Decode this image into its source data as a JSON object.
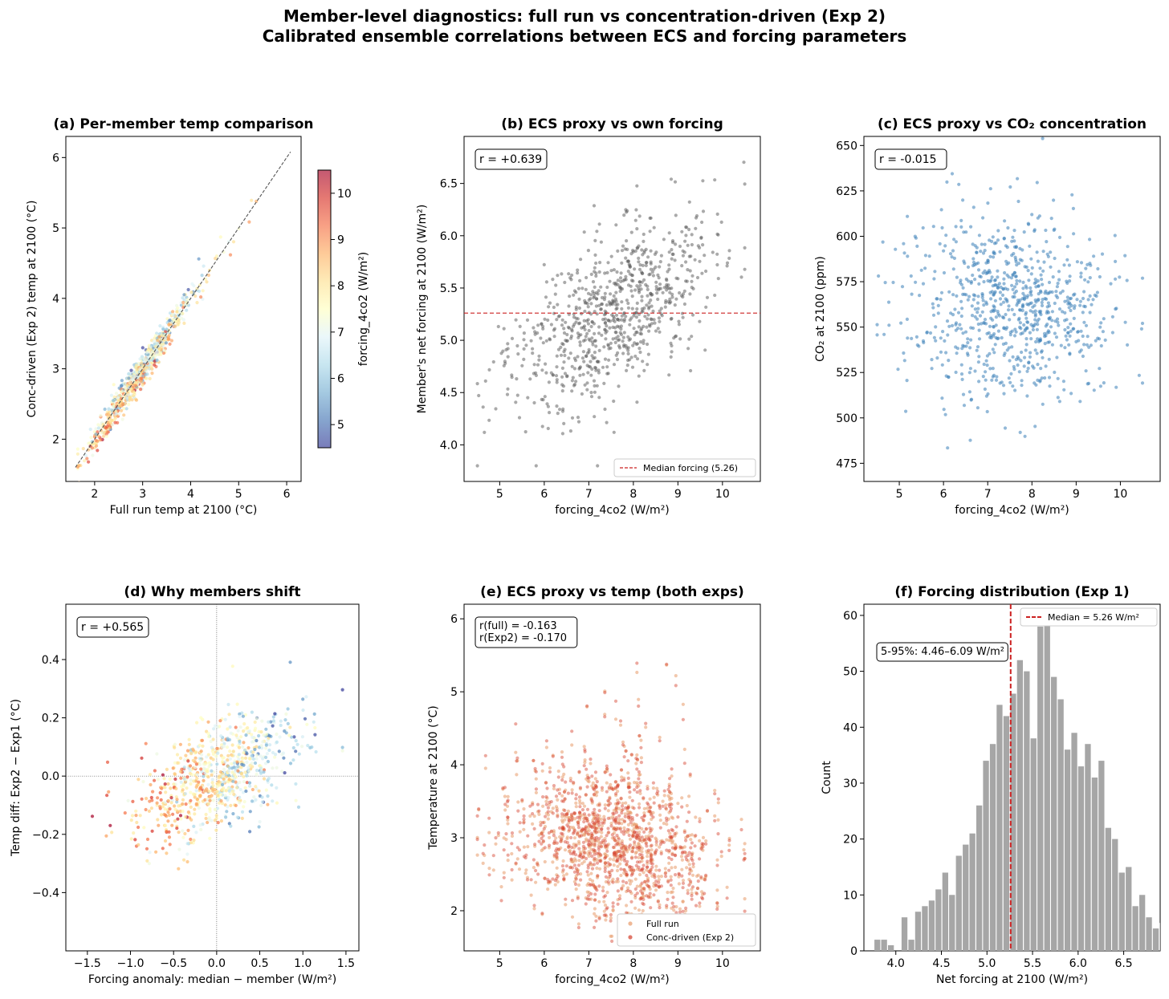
{
  "figure": {
    "title_line1": "Member-level diagnostics: full run vs concentration-driven (Exp 2)",
    "title_line2": "Calibrated ensemble correlations between ECS and forcing parameters"
  },
  "colors": {
    "gray_points": "#555555",
    "blue_points": "#3a7fb8",
    "full_run": "#e89a6a",
    "conc_driven": "#d43d2a",
    "median_line": "#cc2222",
    "hist_bar": "#a6a6a6"
  },
  "chart_data": [
    {
      "id": "a",
      "type": "scatter",
      "title": "(a) Per-member temp comparison",
      "xlabel": "Full run temp at 2100 (°C)",
      "ylabel": "Conc-driven (Exp 2) temp at 2100 (°C)",
      "xlim": [
        1.4,
        6.3
      ],
      "ylim": [
        1.4,
        6.3
      ],
      "xticks": [
        2,
        3,
        4,
        5,
        6
      ],
      "yticks": [
        2,
        3,
        4,
        5,
        6
      ],
      "one_to_one_line": [
        1.6,
        6.08
      ],
      "colorbar": {
        "label": "forcing_4co2 (W/m²)",
        "range": [
          4.5,
          10.5
        ],
        "ticks": [
          5,
          6,
          7,
          8,
          9,
          10
        ],
        "colormap": "RdYlBu_r"
      },
      "points_summary": {
        "n": 800,
        "x_range": [
          1.6,
          6.0
        ],
        "trend": "along 1:1 line"
      }
    },
    {
      "id": "b",
      "type": "scatter",
      "title": "(b) ECS proxy vs own forcing",
      "xlabel": "forcing_4co2 (W/m²)",
      "ylabel": "Member's net forcing at 2100 (W/m²)",
      "xlim": [
        4.2,
        10.85
      ],
      "ylim": [
        3.65,
        6.95
      ],
      "xticks": [
        5,
        6,
        7,
        8,
        9,
        10
      ],
      "yticks": [
        4.0,
        4.5,
        5.0,
        5.5,
        6.0,
        6.5
      ],
      "ytick_labels": [
        "4.0",
        "4.5",
        "5.0",
        "5.5",
        "6.0",
        "6.5"
      ],
      "annotation": "r = +0.639",
      "hline": 5.26,
      "legend": [
        {
          "label": "Median forcing (5.26)",
          "style": "dashed red line"
        }
      ],
      "legend_position": "lower-right"
    },
    {
      "id": "c",
      "type": "scatter",
      "title": "(c) ECS proxy vs CO₂ concentration",
      "xlabel": "forcing_4co2 (W/m²)",
      "ylabel": "CO₂ at 2100 (ppm)",
      "xlim": [
        4.2,
        10.9
      ],
      "ylim": [
        465,
        655
      ],
      "xticks": [
        5,
        6,
        7,
        8,
        9,
        10
      ],
      "yticks": [
        475,
        500,
        525,
        550,
        575,
        600,
        625,
        650
      ],
      "annotation": "r = -0.015"
    },
    {
      "id": "d",
      "type": "scatter",
      "title": "(d) Why members shift",
      "xlabel": "Forcing anomaly: median − member (W/m²)",
      "ylabel": "Temp diff: Exp2 − Exp1 (°C)",
      "xlim": [
        -1.75,
        1.65
      ],
      "ylim": [
        -0.6,
        0.59
      ],
      "xticks": [
        -1.5,
        -1.0,
        -0.5,
        0.0,
        0.5,
        1.0,
        1.5
      ],
      "xtick_labels": [
        "−1.5",
        "−1.0",
        "−0.5",
        "0.0",
        "0.5",
        "1.0",
        "1.5"
      ],
      "yticks": [
        -0.4,
        -0.2,
        0.0,
        0.2,
        0.4
      ],
      "ytick_labels": [
        "−0.4",
        "−0.2",
        "0.0",
        "0.2",
        "0.4"
      ],
      "annotation": "r = +0.565",
      "reference_lines": {
        "x": 0,
        "y": 0
      }
    },
    {
      "id": "e",
      "type": "scatter",
      "title": "(e) ECS proxy vs temp (both exps)",
      "xlabel": "forcing_4co2 (W/m²)",
      "ylabel": "Temperature at 2100 (°C)",
      "xlim": [
        4.2,
        10.85
      ],
      "ylim": [
        1.45,
        6.2
      ],
      "xticks": [
        5,
        6,
        7,
        8,
        9,
        10
      ],
      "yticks": [
        2,
        3,
        4,
        5,
        6
      ],
      "annotation_lines": [
        "r(full) = -0.163",
        "r(Exp2) = -0.170"
      ],
      "legend": [
        {
          "label": "Full run",
          "series": "full"
        },
        {
          "label": "Conc-driven (Exp 2)",
          "series": "conc"
        }
      ],
      "legend_position": "lower-right"
    },
    {
      "id": "f",
      "type": "bar",
      "title": "(f) Forcing distribution (Exp 1)",
      "xlabel": "Net forcing at 2100 (W/m²)",
      "ylabel": "Count",
      "xlim": [
        3.65,
        6.9
      ],
      "ylim": [
        0,
        62
      ],
      "xticks": [
        4.0,
        4.5,
        5.0,
        5.5,
        6.0,
        6.5
      ],
      "xtick_labels": [
        "4.0",
        "4.5",
        "5.0",
        "5.5",
        "6.0",
        "6.5"
      ],
      "yticks": [
        0,
        10,
        20,
        30,
        40,
        50,
        60
      ],
      "bin_start": 3.76,
      "bin_width": 0.0745,
      "counts": [
        2,
        2,
        1,
        0,
        6,
        2,
        7,
        8,
        9,
        11,
        14,
        10,
        17,
        19,
        21,
        26,
        34,
        37,
        44,
        42,
        46,
        52,
        50,
        38,
        58,
        59,
        49,
        45,
        36,
        39,
        33,
        37,
        31,
        34,
        22,
        20,
        14,
        15,
        8,
        10,
        6,
        4,
        5,
        2,
        2,
        3,
        1,
        0,
        1
      ],
      "median": 5.26,
      "annotation": "5-95%: 4.46–6.09 W/m²",
      "legend": [
        {
          "label": "Median = 5.26 W/m²",
          "style": "dashed red line"
        }
      ],
      "legend_position": "upper-right"
    }
  ]
}
